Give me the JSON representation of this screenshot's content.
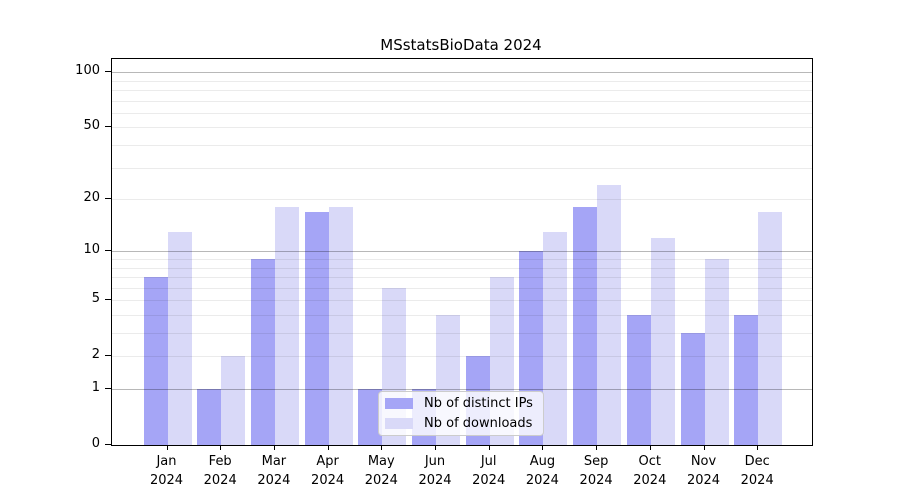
{
  "title": "MSstatsBioData 2024",
  "chart_data": {
    "type": "bar",
    "title": "MSstatsBioData 2024",
    "scale": "log1p",
    "categories": [
      "Jan",
      "Feb",
      "Mar",
      "Apr",
      "May",
      "Jun",
      "Jul",
      "Aug",
      "Sep",
      "Oct",
      "Nov",
      "Dec"
    ],
    "year_label": "2024",
    "series": [
      {
        "name": "Nb of distinct IPs",
        "color": "#a5a5f6",
        "values": [
          7,
          1,
          9,
          17,
          1,
          1,
          2,
          10,
          18,
          4,
          3,
          4
        ]
      },
      {
        "name": "Nb of downloads",
        "color": "#d9d9f8",
        "values": [
          13,
          2,
          18,
          18,
          6,
          4,
          7,
          13,
          24,
          12,
          9,
          17
        ]
      }
    ],
    "y_axis": {
      "major_ticks": [
        0,
        1,
        2,
        5,
        10,
        20,
        50,
        100
      ],
      "strong_gridlines": [
        1,
        10,
        100
      ],
      "light_gridlines": [
        2,
        5,
        20,
        50,
        3,
        4,
        6,
        7,
        8,
        9,
        30,
        40,
        60,
        70,
        80,
        90
      ],
      "ylim": [
        0,
        118
      ]
    },
    "legend_position": "lower center",
    "grid": true
  },
  "colors": {
    "bar_ips": "#a5a5f6",
    "bar_downloads": "#d9d9f8",
    "grid_strong": "rgba(0,0,0,0.28)",
    "grid_light": "rgba(0,0,0,0.08)",
    "axis_line": "#000000",
    "legend_border": "#cccccc",
    "legend_background": "rgba(255,255,255,0.8)"
  }
}
